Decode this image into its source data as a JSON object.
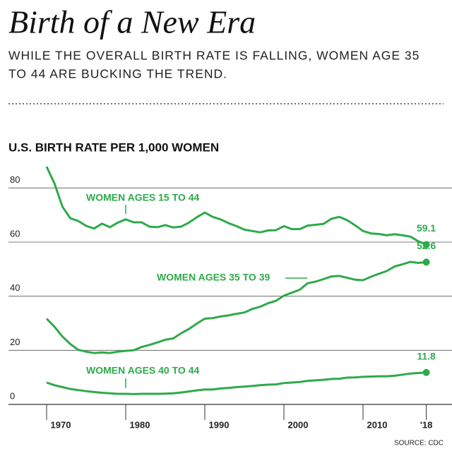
{
  "chart_data": {
    "type": "line",
    "title": "Birth of a New Era",
    "subtitle": [
      "WHILE THE OVERALL BIRTH RATE IS FALLING, WOMEN AGE 35",
      "TO 44 ARE BUCKING THE TREND."
    ],
    "chart_title": "U.S. BIRTH RATE PER 1,000 WOMEN",
    "source": "SOURCE: CDC",
    "x": [
      1970,
      1971,
      1972,
      1973,
      1974,
      1975,
      1976,
      1977,
      1978,
      1979,
      1980,
      1981,
      1982,
      1983,
      1984,
      1985,
      1986,
      1987,
      1988,
      1989,
      1990,
      1991,
      1992,
      1993,
      1994,
      1995,
      1996,
      1997,
      1998,
      1999,
      2000,
      2001,
      2002,
      2003,
      2004,
      2005,
      2006,
      2007,
      2008,
      2009,
      2010,
      2011,
      2012,
      2013,
      2014,
      2015,
      2016,
      2017,
      2018
    ],
    "series": [
      {
        "name": "WOMEN AGES 15 TO 44",
        "color": "#2eaa4a",
        "values": [
          87.9,
          81.6,
          73.1,
          68.8,
          67.8,
          66.0,
          65.0,
          66.8,
          65.5,
          67.2,
          68.4,
          67.3,
          67.3,
          65.7,
          65.5,
          66.3,
          65.4,
          65.7,
          67.2,
          69.2,
          70.9,
          69.3,
          68.4,
          67.0,
          65.9,
          64.6,
          64.1,
          63.6,
          64.3,
          64.4,
          65.9,
          64.8,
          64.8,
          66.1,
          66.4,
          66.7,
          68.6,
          69.3,
          68.1,
          66.2,
          64.1,
          63.2,
          63.0,
          62.5,
          62.9,
          62.5,
          62.0,
          60.3,
          59.1
        ]
      },
      {
        "name": "WOMEN AGES 35 TO 39",
        "color": "#2eaa4a",
        "values": [
          31.7,
          28.7,
          25.1,
          22.3,
          20.2,
          19.5,
          19.0,
          19.2,
          19.0,
          19.5,
          19.8,
          20.0,
          21.2,
          22.0,
          22.9,
          23.9,
          24.4,
          26.3,
          27.9,
          29.9,
          31.7,
          31.9,
          32.5,
          32.9,
          33.5,
          34.0,
          35.3,
          36.1,
          37.4,
          38.3,
          40.2,
          41.3,
          42.4,
          44.8,
          45.4,
          46.3,
          47.3,
          47.5,
          46.8,
          46.1,
          45.9,
          47.2,
          48.3,
          49.3,
          51.0,
          51.8,
          52.7,
          52.3,
          52.6
        ]
      },
      {
        "name": "WOMEN AGES 40 TO 44",
        "color": "#2eaa4a",
        "values": [
          8.1,
          7.1,
          6.4,
          5.7,
          5.3,
          4.9,
          4.6,
          4.3,
          4.1,
          3.9,
          3.9,
          3.8,
          3.9,
          3.9,
          3.9,
          4.0,
          4.1,
          4.4,
          4.8,
          5.2,
          5.5,
          5.5,
          5.9,
          6.1,
          6.4,
          6.6,
          6.8,
          7.1,
          7.3,
          7.4,
          7.9,
          8.1,
          8.3,
          8.7,
          8.9,
          9.1,
          9.4,
          9.5,
          9.9,
          10.0,
          10.2,
          10.3,
          10.4,
          10.4,
          10.6,
          11.0,
          11.4,
          11.6,
          11.8
        ]
      }
    ],
    "xlim": [
      1970,
      2018
    ],
    "xticks": [
      1970,
      1980,
      1990,
      2000,
      2010,
      {
        "value": 2018,
        "label": "'18"
      }
    ],
    "ylim": [
      0,
      90
    ],
    "yticks": [
      0,
      20,
      40,
      60,
      80
    ],
    "grid": true
  }
}
